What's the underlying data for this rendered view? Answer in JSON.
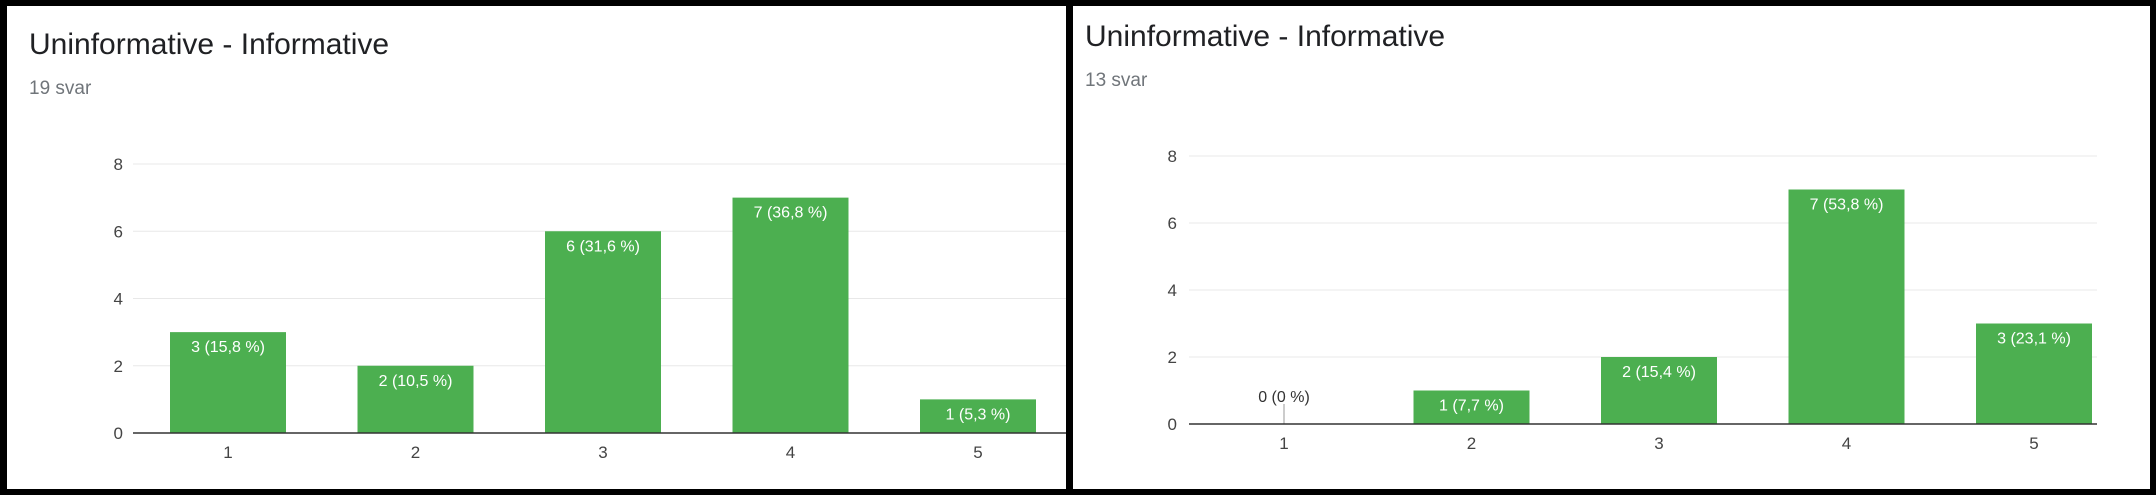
{
  "chart_data": [
    {
      "type": "bar",
      "title": "Uninformative - Informative",
      "subtitle": "19 svar",
      "categories": [
        "1",
        "2",
        "3",
        "4",
        "5"
      ],
      "values": [
        3,
        2,
        6,
        7,
        1
      ],
      "data_labels": [
        "3 (15,8 %)",
        "2 (10,5 %)",
        "6 (31,6 %)",
        "7 (36,8 %)",
        "1 (5,3 %)"
      ],
      "ylim": [
        0,
        8
      ],
      "yticks": [
        "0",
        "2",
        "4",
        "6",
        "8"
      ],
      "ytick_values": [
        0,
        2,
        4,
        6,
        8
      ],
      "grid": true,
      "bar_color": "#4caf50"
    },
    {
      "type": "bar",
      "title": "Uninformative - Informative",
      "subtitle": "13 svar",
      "categories": [
        "1",
        "2",
        "3",
        "4",
        "5"
      ],
      "values": [
        0,
        1,
        2,
        7,
        3
      ],
      "data_labels": [
        "0 (0 %)",
        "1 (7,7 %)",
        "2 (15,4 %)",
        "7 (53,8 %)",
        "3 (23,1 %)"
      ],
      "ylim": [
        0,
        8
      ],
      "yticks": [
        "0",
        "2",
        "4",
        "6",
        "8"
      ],
      "ytick_values": [
        0,
        2,
        4,
        6,
        8
      ],
      "grid": true,
      "bar_color": "#4caf50"
    }
  ]
}
